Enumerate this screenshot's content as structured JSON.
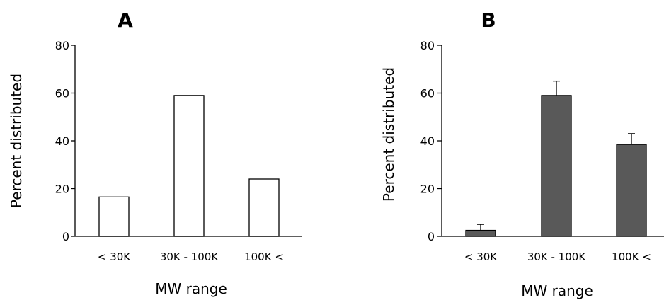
{
  "chart_data": [
    {
      "type": "bar",
      "panel_label": "A",
      "categories": [
        "< 30K",
        "30K - 100K",
        "100K <"
      ],
      "values": [
        16.5,
        59,
        24
      ],
      "errors": null,
      "bar_color": "#ffffff",
      "xlabel": "MW range",
      "ylabel": "Percent distributed",
      "ylim": [
        0,
        80
      ],
      "yticks": [
        "0",
        "20",
        "40",
        "60",
        "80"
      ],
      "grid": false,
      "legend": "none"
    },
    {
      "type": "bar",
      "panel_label": "B",
      "categories": [
        "< 30K",
        "30K - 100K",
        "100K <"
      ],
      "values": [
        2.5,
        59,
        38.5
      ],
      "errors": [
        2.5,
        6,
        4.5
      ],
      "bar_color": "#595959",
      "xlabel": "MW range",
      "ylabel": "Percent distributed",
      "ylim": [
        0,
        80
      ],
      "yticks": [
        "0",
        "20",
        "40",
        "60",
        "80"
      ],
      "grid": false,
      "legend": "none"
    }
  ]
}
